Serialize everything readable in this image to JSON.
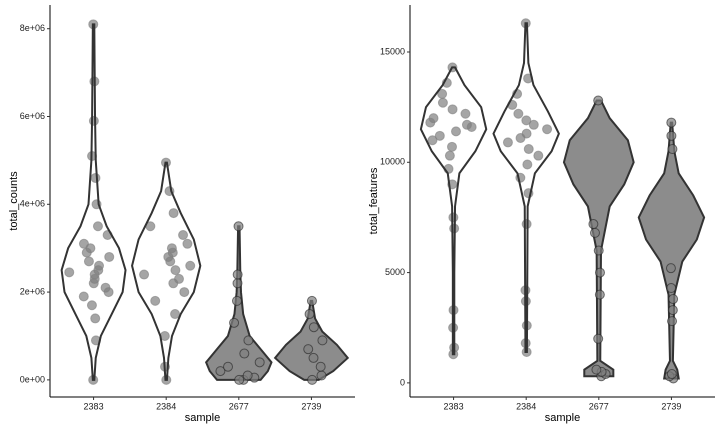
{
  "chart_data": [
    {
      "type": "violin",
      "x_label": "sample",
      "y_label": "total_counts",
      "categories": [
        "2383",
        "2384",
        "2677",
        "2739"
      ],
      "ylim": [
        -390000,
        8540000
      ],
      "yticks": [
        {
          "value": 0,
          "label": "0e+00"
        },
        {
          "value": 2000000,
          "label": "2e+06"
        },
        {
          "value": 4000000,
          "label": "4e+06"
        },
        {
          "value": 6000000,
          "label": "6e+06"
        },
        {
          "value": 8000000,
          "label": "8e+06"
        }
      ],
      "point_color": "#7f7f7f",
      "line_color": "#333333",
      "violins": [
        {
          "fill": "none",
          "density": {
            "y": [
              0,
              500000,
              1000000,
              1500000,
              2000000,
              2500000,
              3000000,
              3500000,
              4000000,
              5000000,
              6000000,
              7000000,
              8100000
            ],
            "width": [
              0.01,
              0.03,
              0.1,
              0.25,
              0.4,
              0.44,
              0.35,
              0.18,
              0.07,
              0.03,
              0.02,
              0.015,
              0.01
            ]
          },
          "values": [
            0,
            900000,
            1400000,
            1700000,
            1900000,
            2000000,
            2100000,
            2200000,
            2300000,
            2400000,
            2450000,
            2500000,
            2600000,
            2700000,
            2800000,
            2900000,
            3000000,
            3100000,
            3300000,
            3500000,
            4000000,
            4600000,
            5100000,
            5900000,
            6800000,
            8100000
          ]
        },
        {
          "fill": "none",
          "density": {
            "y": [
              0,
              500000,
              1000000,
              1500000,
              2000000,
              2600000,
              3200000,
              3800000,
              4300000,
              4950000
            ],
            "width": [
              0.01,
              0.03,
              0.08,
              0.2,
              0.38,
              0.47,
              0.38,
              0.2,
              0.07,
              0.01
            ]
          },
          "values": [
            0,
            300000,
            1000000,
            1500000,
            1800000,
            2000000,
            2200000,
            2300000,
            2400000,
            2500000,
            2600000,
            2700000,
            2800000,
            2900000,
            3000000,
            3100000,
            3300000,
            3500000,
            3800000,
            4300000,
            4950000
          ]
        },
        {
          "fill": "#8c8c8c",
          "density": {
            "y": [
              0,
              200000,
              400000,
              700000,
              1000000,
              1500000,
              2000000,
              2500000,
              3500000
            ],
            "width": [
              0.3,
              0.4,
              0.45,
              0.3,
              0.15,
              0.06,
              0.03,
              0.02,
              0.01
            ]
          },
          "values": [
            0,
            0,
            50000,
            100000,
            200000,
            300000,
            400000,
            600000,
            900000,
            1300000,
            1800000,
            2200000,
            2400000,
            3500000
          ]
        },
        {
          "fill": "#8c8c8c",
          "density": {
            "y": [
              0,
              200000,
              500000,
              800000,
              1100000,
              1400000,
              1800000
            ],
            "width": [
              0.1,
              0.3,
              0.5,
              0.35,
              0.15,
              0.05,
              0.01
            ]
          },
          "values": [
            0,
            100000,
            300000,
            500000,
            700000,
            900000,
            1200000,
            1500000,
            1800000
          ]
        }
      ]
    },
    {
      "type": "violin",
      "x_label": "sample",
      "y_label": "total_features",
      "categories": [
        "2383",
        "2384",
        "2677",
        "2739"
      ],
      "ylim": [
        -640,
        17130
      ],
      "yticks": [
        0,
        5000,
        10000,
        15000
      ],
      "point_color": "#7f7f7f",
      "line_color": "#333333",
      "violins": [
        {
          "fill": "none",
          "density": {
            "y": [
              1300,
              5000,
              8000,
              9500,
              10500,
              11500,
              12500,
              13500,
              14300
            ],
            "width": [
              0.01,
              0.01,
              0.02,
              0.08,
              0.3,
              0.45,
              0.38,
              0.15,
              0.02
            ]
          },
          "values": [
            1300,
            1600,
            2500,
            3300,
            7000,
            7500,
            9000,
            9700,
            10300,
            10700,
            11000,
            11200,
            11400,
            11600,
            11700,
            11800,
            12000,
            12200,
            12400,
            12700,
            13100,
            13600,
            14300
          ]
        },
        {
          "fill": "none",
          "density": {
            "y": [
              1400,
              8000,
              9500,
              10500,
              11300,
              12300,
              13500,
              14500,
              16300
            ],
            "width": [
              0.01,
              0.02,
              0.12,
              0.35,
              0.45,
              0.3,
              0.1,
              0.03,
              0.01
            ]
          },
          "values": [
            1400,
            1800,
            2600,
            3700,
            4200,
            7200,
            8600,
            9300,
            9900,
            10300,
            10600,
            10900,
            11100,
            11300,
            11500,
            11700,
            11900,
            12200,
            12600,
            13100,
            13800,
            16300
          ]
        },
        {
          "fill": "#8c8c8c",
          "density": {
            "y": [
              300,
              600,
              1000,
              6000,
              8000,
              9000,
              10000,
              11000,
              12000,
              12800
            ],
            "width": [
              0.2,
              0.2,
              0.02,
              0.03,
              0.15,
              0.35,
              0.48,
              0.4,
              0.15,
              0.03
            ]
          },
          "values": [
            300,
            400,
            500,
            600,
            2000,
            4000,
            5000,
            6000,
            6800,
            7200,
            12800
          ]
        },
        {
          "fill": "#8c8c8c",
          "density": {
            "y": [
              200,
              600,
              1000,
              4000,
              5500,
              6500,
              7500,
              8500,
              9500,
              10500,
              11800
            ],
            "width": [
              0.1,
              0.08,
              0.02,
              0.04,
              0.15,
              0.35,
              0.45,
              0.3,
              0.1,
              0.04,
              0.01
            ]
          },
          "values": [
            200,
            300,
            400,
            2800,
            3300,
            3800,
            4300,
            5200,
            10600,
            11200,
            11800
          ]
        }
      ]
    }
  ]
}
